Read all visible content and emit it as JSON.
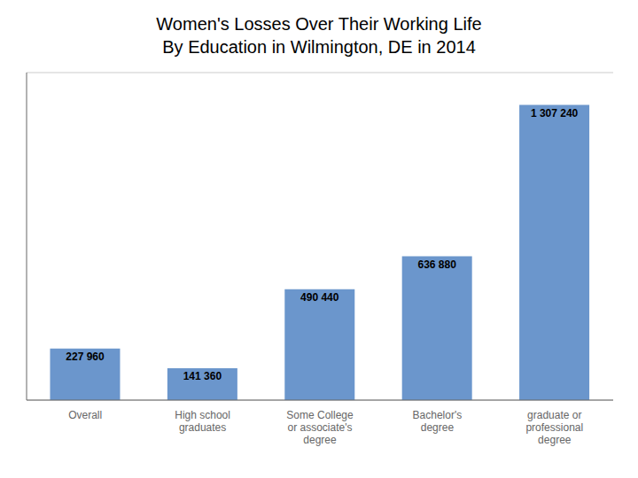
{
  "chart_data": {
    "type": "bar",
    "title": "Women's Losses Over Their Working Life",
    "subtitle": "By Education in Wilmington, DE in 2014",
    "categories": [
      "Overall",
      "High school\ngraduates",
      "Some College\nor associate's\ndegree",
      "Bachelor's\ndegree",
      "graduate or\nprofessional\ndegree"
    ],
    "values": [
      227960,
      141360,
      490440,
      636880,
      1307240
    ],
    "value_labels": [
      "227 960",
      "141 360",
      "490 440",
      "636 880",
      "1 307 240"
    ],
    "color": "#6b96cc",
    "ylim": [
      0,
      1450000
    ],
    "yticks": [
      0,
      200000,
      400000,
      600000,
      800000,
      1000000,
      1200000,
      1400000
    ],
    "grid": true,
    "data_labels": true,
    "tick_labels": "x"
  }
}
